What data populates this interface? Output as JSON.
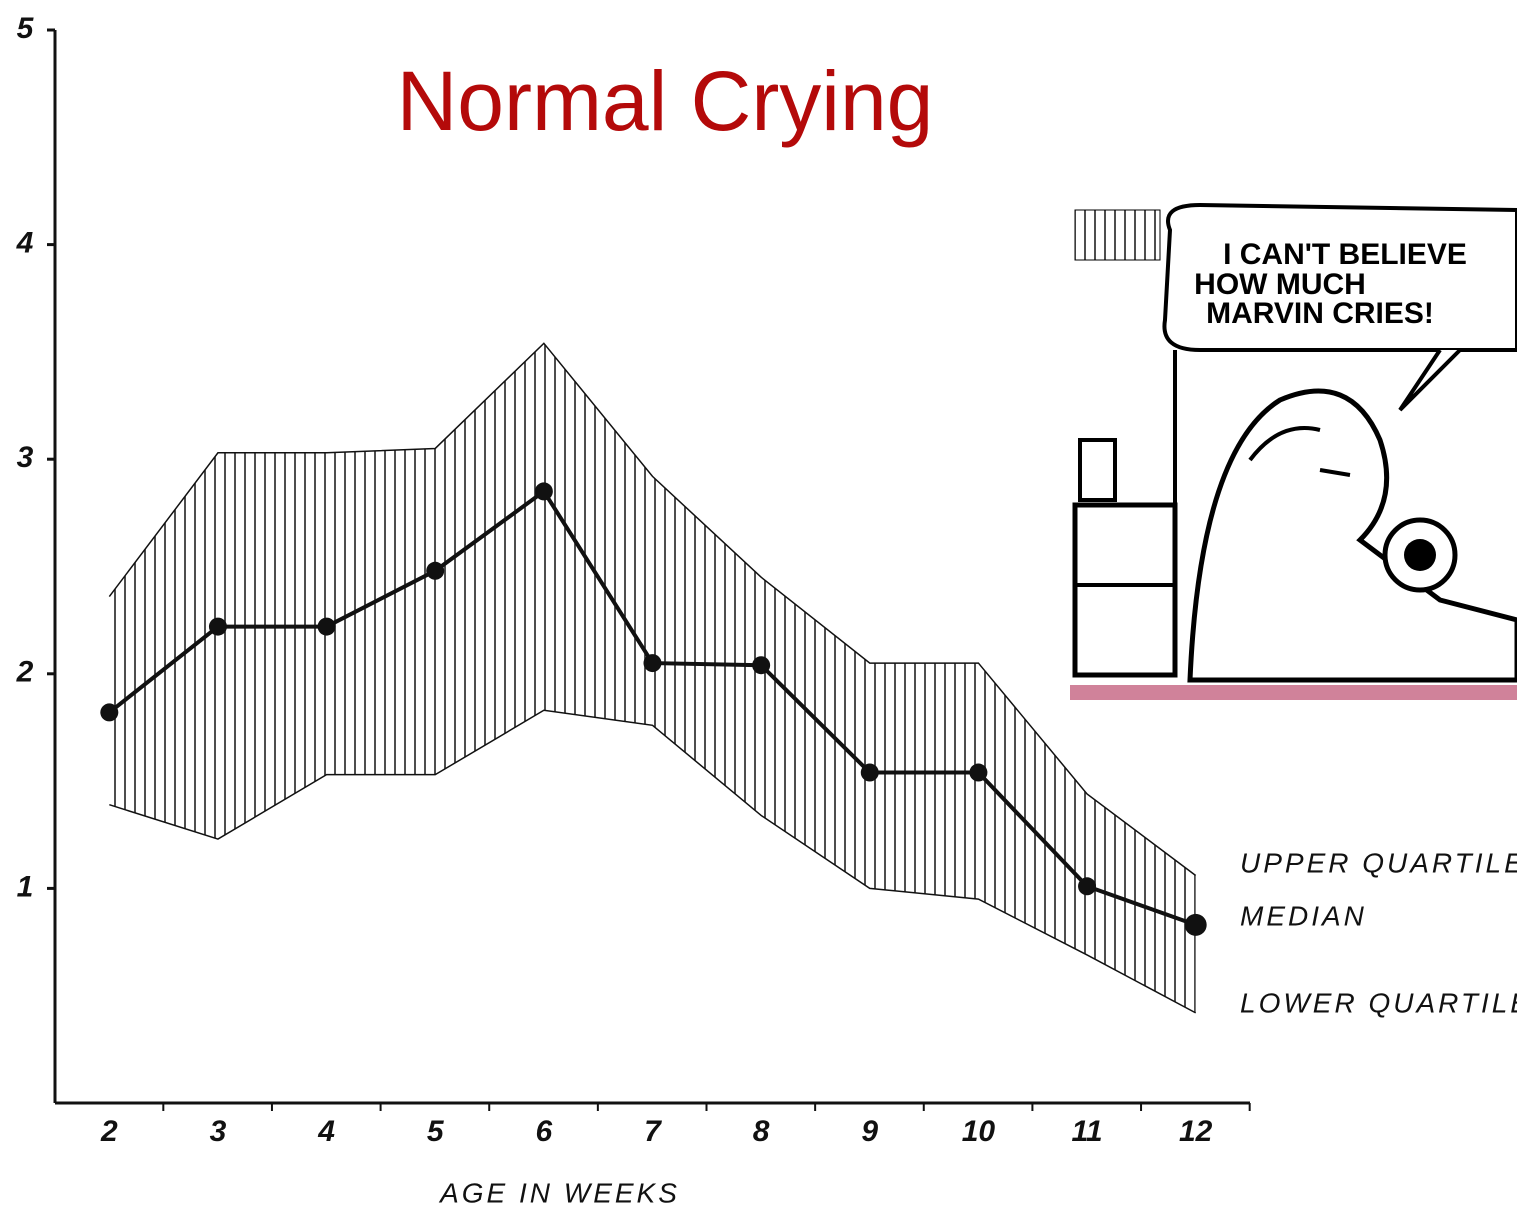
{
  "chart_data": {
    "type": "band-line",
    "title": "Normal Crying",
    "x_label": "AGE IN WEEKS",
    "x": [
      2,
      3,
      4,
      5,
      6,
      7,
      8,
      9,
      10,
      11,
      12
    ],
    "series": [
      {
        "name": "UPPER QUARTILE",
        "color": "#111111",
        "values": [
          2.36,
          3.03,
          3.03,
          3.05,
          3.54,
          2.92,
          2.45,
          2.05,
          2.05,
          1.44,
          1.06
        ]
      },
      {
        "name": "MEDIAN",
        "color": "#111111",
        "values": [
          1.82,
          2.22,
          2.22,
          2.48,
          2.85,
          2.05,
          2.04,
          1.54,
          1.54,
          1.01,
          0.83
        ]
      },
      {
        "name": "LOWER QUARTILE",
        "color": "#111111",
        "values": [
          1.39,
          1.23,
          1.53,
          1.53,
          1.83,
          1.76,
          1.34,
          1.0,
          0.95,
          0.69,
          0.42
        ]
      }
    ],
    "xlim": [
      1.5,
      12.5
    ],
    "xticks": [
      2,
      3,
      4,
      5,
      6,
      7,
      8,
      9,
      10,
      11,
      12
    ],
    "ylim": [
      0,
      5
    ],
    "yticks": [
      1,
      2,
      3,
      4,
      5
    ],
    "annotation": [
      "I CAN'T BELIEVE",
      "HOW MUCH",
      "MARVIN CRIES!"
    ]
  }
}
